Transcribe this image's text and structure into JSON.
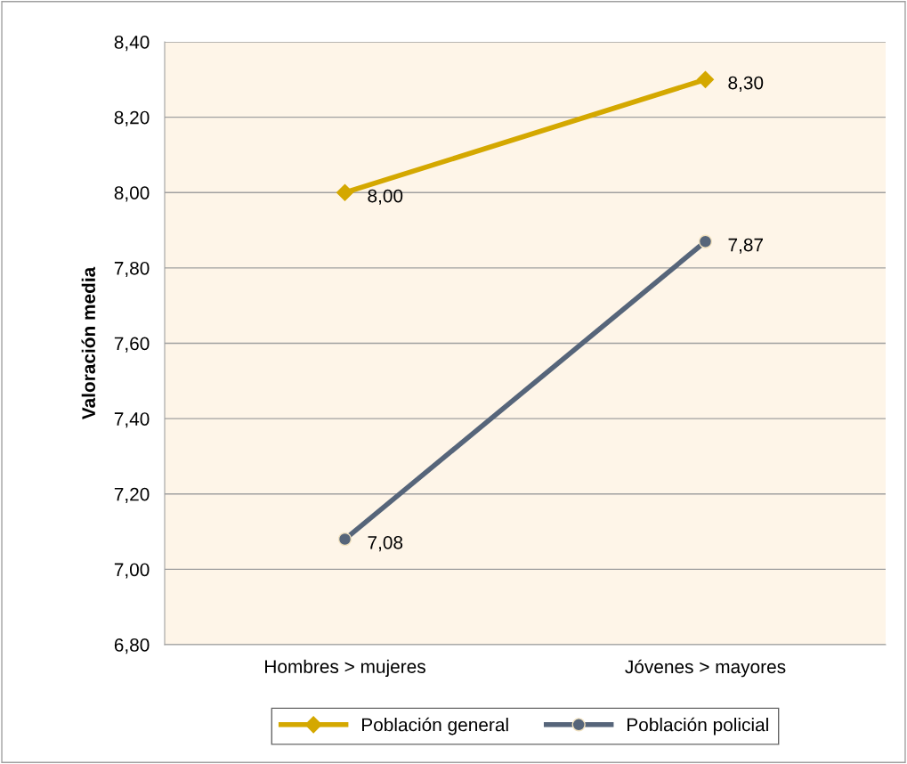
{
  "chart_data": {
    "type": "line",
    "ylabel": "Valoración media",
    "categories": [
      "Hombres > mujeres",
      "Jóvenes > mayores"
    ],
    "series": [
      {
        "name": "Población general",
        "color": "#d4a800",
        "marker": "diamond",
        "values": [
          8.0,
          8.3
        ],
        "value_labels": [
          "8,00",
          "8,30"
        ]
      },
      {
        "name": "Población policial",
        "color": "#56657a",
        "marker": "circle",
        "values": [
          7.08,
          7.87
        ],
        "value_labels": [
          "7,08",
          "7,87"
        ]
      }
    ],
    "ylim": [
      6.8,
      8.4
    ],
    "yticks": [
      {
        "value": 6.8,
        "label": "6,80"
      },
      {
        "value": 7.0,
        "label": "7,00"
      },
      {
        "value": 7.2,
        "label": "7,20"
      },
      {
        "value": 7.4,
        "label": "7,40"
      },
      {
        "value": 7.6,
        "label": "7,60"
      },
      {
        "value": 7.8,
        "label": "7,80"
      },
      {
        "value": 8.0,
        "label": "8,00"
      },
      {
        "value": 8.2,
        "label": "8,20"
      },
      {
        "value": 8.4,
        "label": "8,40"
      }
    ],
    "grid": "y",
    "legend": "bottom",
    "line_style": "solid"
  }
}
